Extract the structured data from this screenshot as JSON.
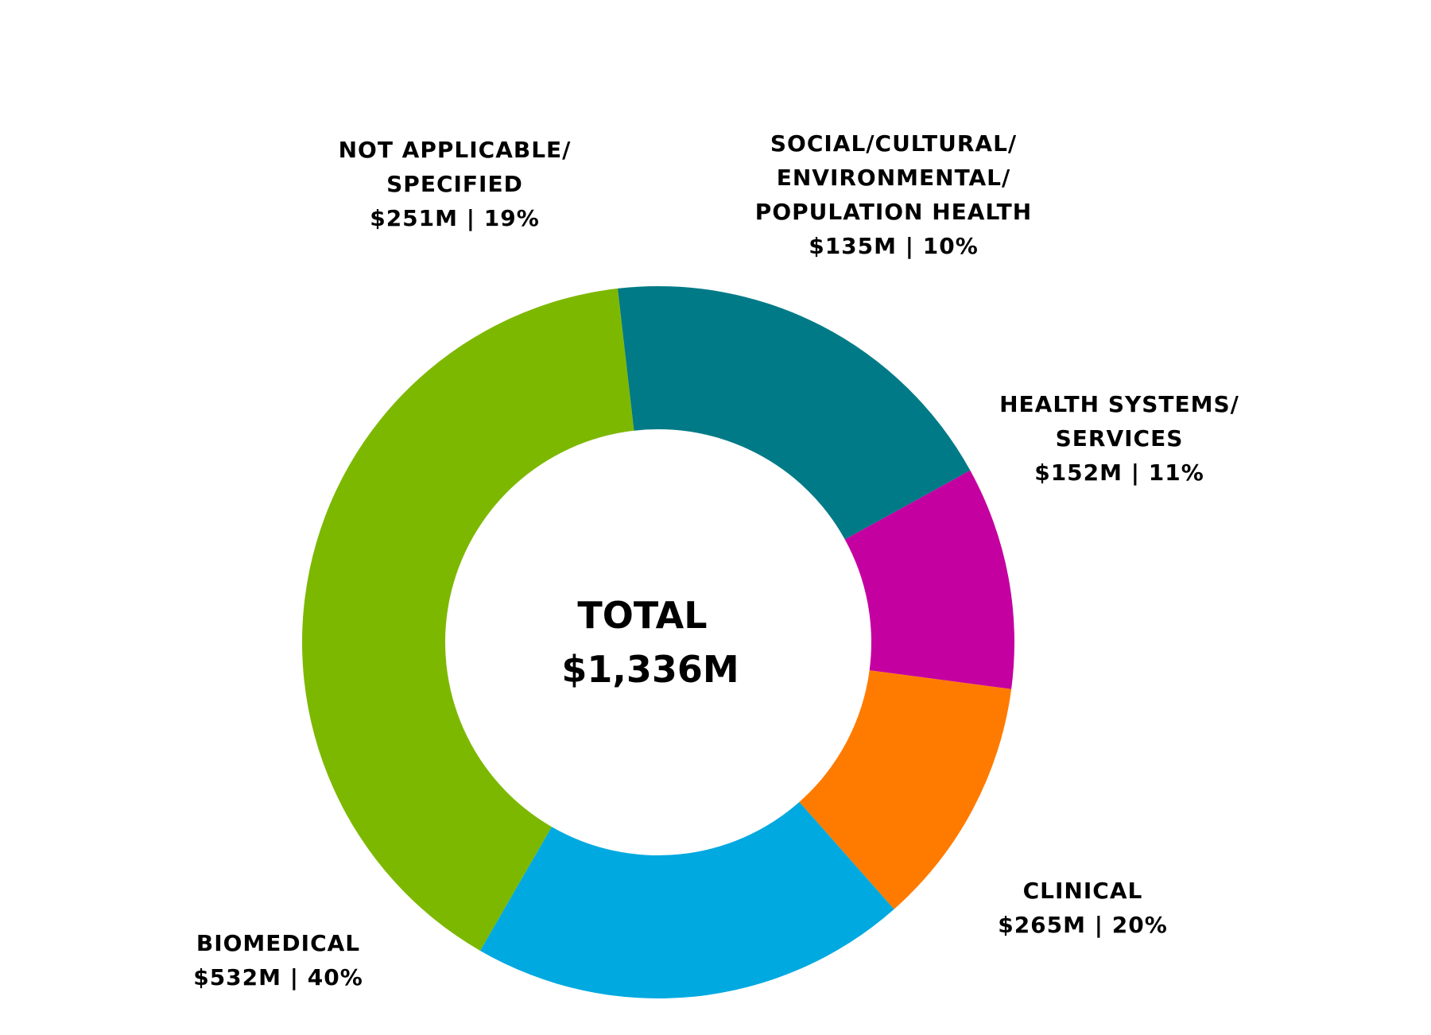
{
  "chart_data": {
    "type": "pie",
    "donut": true,
    "center_label": {
      "line1": "TOTAL",
      "line2": "$1,336M"
    },
    "slices": [
      {
        "name": "BIOMEDICAL",
        "label_lines": [
          "BIOMEDICAL",
          "$532M | 40%"
        ],
        "value": 532,
        "percent": 40,
        "color": "#7db800"
      },
      {
        "name": "NOT APPLICABLE/ SPECIFIED",
        "label_lines": [
          "NOT APPLICABLE/",
          "SPECIFIED",
          "$251M | 19%"
        ],
        "value": 251,
        "percent": 19,
        "color": "#007a87"
      },
      {
        "name": "SOCIAL/CULTURAL/ ENVIRONMENTAL/ POPULATION HEALTH",
        "label_lines": [
          "SOCIAL/CULTURAL/",
          "ENVIRONMENTAL/",
          "POPULATION HEALTH",
          "$135M | 10%"
        ],
        "value": 135,
        "percent": 10,
        "color": "#c400a0"
      },
      {
        "name": "HEALTH SYSTEMS/ SERVICES",
        "label_lines": [
          "HEALTH SYSTEMS/",
          "SERVICES",
          "$152M | 11%"
        ],
        "value": 152,
        "percent": 11,
        "color": "#ff7b00"
      },
      {
        "name": "CLINICAL",
        "label_lines": [
          "CLINICAL",
          "$265M | 20%"
        ],
        "value": 265,
        "percent": 20,
        "color": "#00a9e0"
      }
    ]
  }
}
